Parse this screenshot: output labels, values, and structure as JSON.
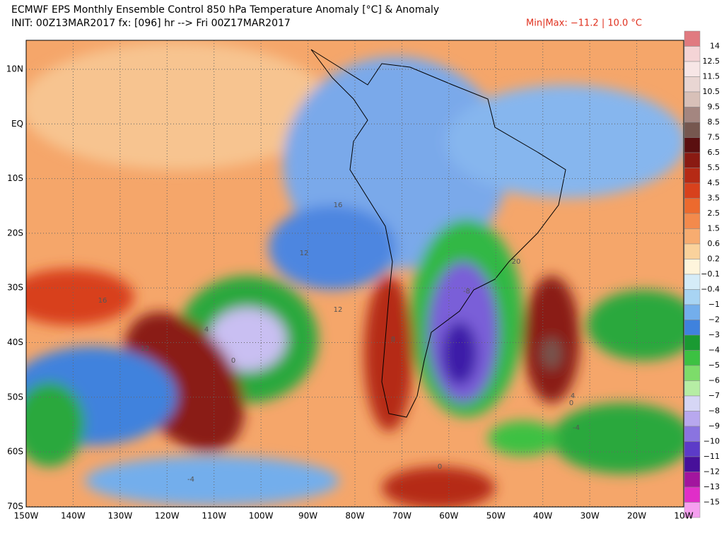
{
  "header": {
    "title": "ECMWF EPS Monthly Ensemble Control 850 hPa Temperature Anomaly [°C] & Anomaly",
    "init": "INIT: 00Z13MAR2017 fx: [096] hr --> Fri 00Z17MAR2017",
    "minmax": "Min|Max: −11.2 | 10.0 °C"
  },
  "map": {
    "lat_labels": [
      "10N",
      "EQ",
      "10S",
      "20S",
      "30S",
      "40S",
      "50S",
      "60S",
      "70S"
    ],
    "lon_labels": [
      "150W",
      "140W",
      "130W",
      "120W",
      "110W",
      "100W",
      "90W",
      "80W",
      "70W",
      "60W",
      "50W",
      "40W",
      "30W",
      "20W",
      "10W"
    ],
    "contour_labels": [
      "16",
      "12",
      "16",
      "12",
      "4",
      "0",
      "12",
      "8",
      "-8",
      "4",
      "0",
      "-4",
      "-4",
      "0",
      "20"
    ]
  },
  "colorbar": {
    "labels": [
      "14",
      "12.5",
      "11.5",
      "10.5",
      "9.5",
      "8.5",
      "7.5",
      "6.5",
      "5.5",
      "4.5",
      "3.5",
      "2.5",
      "1.5",
      "0.6",
      "0.2",
      "−0.1",
      "−0.4",
      "−1",
      "−2",
      "−3",
      "−4",
      "−5",
      "−6",
      "−7",
      "−8",
      "−9",
      "−10",
      "−11",
      "−12",
      "−13",
      "−15"
    ],
    "colors": [
      "#e07a80",
      "#f4d4d6",
      "#f7e6e6",
      "#e9d6d3",
      "#d8c0b8",
      "#a48680",
      "#76574f",
      "#5a0f10",
      "#8a1a12",
      "#b52a15",
      "#d8411c",
      "#ec6a2e",
      "#f38a4c",
      "#f7ac70",
      "#fad29c",
      "#fef5dc",
      "#d5ecf8",
      "#a8d4f3",
      "#73aeec",
      "#3f82dd",
      "#1a9a32",
      "#3cc142",
      "#7ddc6a",
      "#b6eda4",
      "#d6d6f5",
      "#b8a8ee",
      "#8a74e0",
      "#5c3bc8",
      "#47109a",
      "#a2159e",
      "#e02ec8",
      "#f69ff0"
    ]
  }
}
